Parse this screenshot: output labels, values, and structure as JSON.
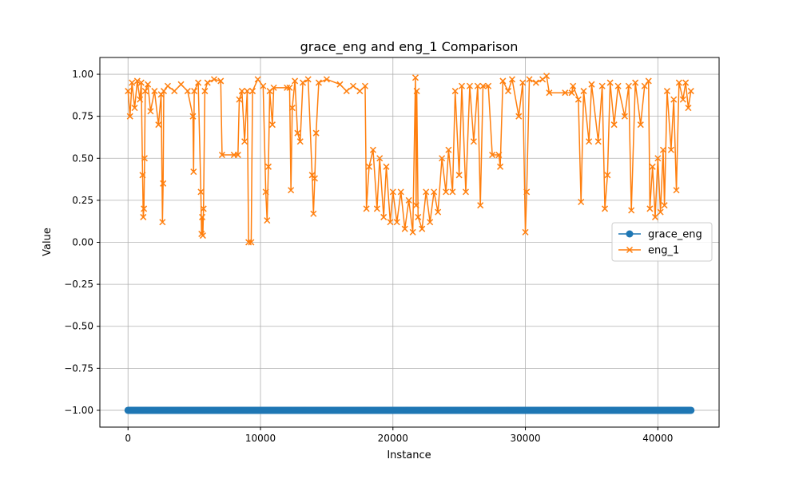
{
  "chart_data": {
    "type": "line",
    "title": "grace_eng and eng_1 Comparison",
    "xlabel": "Instance",
    "ylabel": "Value",
    "xlim": [
      -2125,
      44625
    ],
    "ylim": [
      -1.1,
      1.1
    ],
    "xticks": [
      0,
      10000,
      20000,
      30000,
      40000
    ],
    "xtick_labels": [
      "0",
      "10000",
      "20000",
      "30000",
      "40000"
    ],
    "yticks": [
      1.0,
      0.75,
      0.5,
      0.25,
      0.0,
      -0.25,
      -0.5,
      -0.75,
      -1.0
    ],
    "ytick_labels": [
      "1.00",
      "0.75",
      "0.50",
      "0.25",
      "0.00",
      "−0.25",
      "−0.50",
      "−0.75",
      "−1.00"
    ],
    "grid": true,
    "legend": "center-right",
    "series": [
      {
        "name": "grace_eng",
        "color": "#1f77b4",
        "marker": "circle",
        "x_range": [
          0,
          42500
        ],
        "constant_value": -1.0
      },
      {
        "name": "eng_1",
        "color": "#ff7f0e",
        "marker": "x",
        "points": [
          [
            0,
            0.9
          ],
          [
            150,
            0.75
          ],
          [
            300,
            0.95
          ],
          [
            500,
            0.8
          ],
          [
            700,
            0.96
          ],
          [
            900,
            0.85
          ],
          [
            1000,
            0.95
          ],
          [
            1100,
            0.4
          ],
          [
            1150,
            0.15
          ],
          [
            1200,
            0.2
          ],
          [
            1250,
            0.5
          ],
          [
            1300,
            0.9
          ],
          [
            1500,
            0.94
          ],
          [
            1700,
            0.78
          ],
          [
            2000,
            0.9
          ],
          [
            2300,
            0.7
          ],
          [
            2500,
            0.88
          ],
          [
            2600,
            0.12
          ],
          [
            2650,
            0.35
          ],
          [
            2700,
            0.9
          ],
          [
            3000,
            0.93
          ],
          [
            3500,
            0.9
          ],
          [
            4000,
            0.94
          ],
          [
            4500,
            0.9
          ],
          [
            4900,
            0.75
          ],
          [
            4950,
            0.42
          ],
          [
            5000,
            0.9
          ],
          [
            5300,
            0.95
          ],
          [
            5500,
            0.3
          ],
          [
            5550,
            0.05
          ],
          [
            5600,
            0.15
          ],
          [
            5650,
            0.04
          ],
          [
            5700,
            0.2
          ],
          [
            5800,
            0.9
          ],
          [
            6000,
            0.95
          ],
          [
            6500,
            0.97
          ],
          [
            7000,
            0.96
          ],
          [
            7100,
            0.52
          ],
          [
            8000,
            0.52
          ],
          [
            8300,
            0.52
          ],
          [
            8400,
            0.85
          ],
          [
            8600,
            0.9
          ],
          [
            8800,
            0.6
          ],
          [
            9000,
            0.9
          ],
          [
            9100,
            0.0
          ],
          [
            9300,
            0.0
          ],
          [
            9400,
            0.9
          ],
          [
            9800,
            0.97
          ],
          [
            10200,
            0.93
          ],
          [
            10400,
            0.3
          ],
          [
            10500,
            0.13
          ],
          [
            10600,
            0.45
          ],
          [
            10700,
            0.9
          ],
          [
            10900,
            0.7
          ],
          [
            11000,
            0.92
          ],
          [
            12000,
            0.92
          ],
          [
            12200,
            0.92
          ],
          [
            12300,
            0.31
          ],
          [
            12400,
            0.8
          ],
          [
            12600,
            0.96
          ],
          [
            12800,
            0.65
          ],
          [
            13000,
            0.6
          ],
          [
            13200,
            0.95
          ],
          [
            13600,
            0.97
          ],
          [
            13900,
            0.4
          ],
          [
            14000,
            0.17
          ],
          [
            14100,
            0.38
          ],
          [
            14200,
            0.65
          ],
          [
            14400,
            0.95
          ],
          [
            15000,
            0.97
          ],
          [
            16000,
            0.94
          ],
          [
            16500,
            0.9
          ],
          [
            17000,
            0.93
          ],
          [
            17500,
            0.9
          ],
          [
            17900,
            0.93
          ],
          [
            18000,
            0.2
          ],
          [
            18200,
            0.45
          ],
          [
            18500,
            0.55
          ],
          [
            18800,
            0.2
          ],
          [
            19000,
            0.5
          ],
          [
            19300,
            0.15
          ],
          [
            19500,
            0.45
          ],
          [
            19800,
            0.12
          ],
          [
            20000,
            0.3
          ],
          [
            20300,
            0.12
          ],
          [
            20600,
            0.3
          ],
          [
            20900,
            0.08
          ],
          [
            21200,
            0.25
          ],
          [
            21500,
            0.06
          ],
          [
            21700,
            0.98
          ],
          [
            21750,
            0.22
          ],
          [
            21800,
            0.9
          ],
          [
            21900,
            0.15
          ],
          [
            22200,
            0.08
          ],
          [
            22500,
            0.3
          ],
          [
            22800,
            0.12
          ],
          [
            23100,
            0.3
          ],
          [
            23400,
            0.18
          ],
          [
            23700,
            0.5
          ],
          [
            24000,
            0.3
          ],
          [
            24200,
            0.55
          ],
          [
            24500,
            0.3
          ],
          [
            24700,
            0.9
          ],
          [
            25000,
            0.4
          ],
          [
            25200,
            0.93
          ],
          [
            25500,
            0.3
          ],
          [
            25800,
            0.93
          ],
          [
            26100,
            0.6
          ],
          [
            26400,
            0.93
          ],
          [
            26600,
            0.22
          ],
          [
            26800,
            0.93
          ],
          [
            27200,
            0.93
          ],
          [
            27500,
            0.52
          ],
          [
            28000,
            0.52
          ],
          [
            28100,
            0.45
          ],
          [
            28300,
            0.96
          ],
          [
            28700,
            0.9
          ],
          [
            29000,
            0.97
          ],
          [
            29500,
            0.75
          ],
          [
            29800,
            0.95
          ],
          [
            30000,
            0.06
          ],
          [
            30100,
            0.3
          ],
          [
            30300,
            0.97
          ],
          [
            30800,
            0.95
          ],
          [
            31300,
            0.97
          ],
          [
            31600,
            0.99
          ],
          [
            31800,
            0.89
          ],
          [
            33000,
            0.89
          ],
          [
            33500,
            0.89
          ],
          [
            33600,
            0.93
          ],
          [
            34000,
            0.85
          ],
          [
            34200,
            0.24
          ],
          [
            34400,
            0.9
          ],
          [
            34800,
            0.6
          ],
          [
            35000,
            0.94
          ],
          [
            35500,
            0.6
          ],
          [
            35800,
            0.93
          ],
          [
            36000,
            0.2
          ],
          [
            36200,
            0.4
          ],
          [
            36400,
            0.95
          ],
          [
            36700,
            0.7
          ],
          [
            37000,
            0.93
          ],
          [
            37500,
            0.75
          ],
          [
            37800,
            0.93
          ],
          [
            38000,
            0.19
          ],
          [
            38300,
            0.95
          ],
          [
            38700,
            0.7
          ],
          [
            39000,
            0.93
          ],
          [
            39300,
            0.96
          ],
          [
            39400,
            0.2
          ],
          [
            39600,
            0.45
          ],
          [
            39800,
            0.15
          ],
          [
            40000,
            0.5
          ],
          [
            40200,
            0.18
          ],
          [
            40400,
            0.55
          ],
          [
            40500,
            0.22
          ],
          [
            40700,
            0.9
          ],
          [
            41000,
            0.55
          ],
          [
            41200,
            0.85
          ],
          [
            41400,
            0.31
          ],
          [
            41600,
            0.95
          ],
          [
            41900,
            0.85
          ],
          [
            42100,
            0.95
          ],
          [
            42300,
            0.8
          ],
          [
            42500,
            0.9
          ]
        ]
      }
    ]
  }
}
